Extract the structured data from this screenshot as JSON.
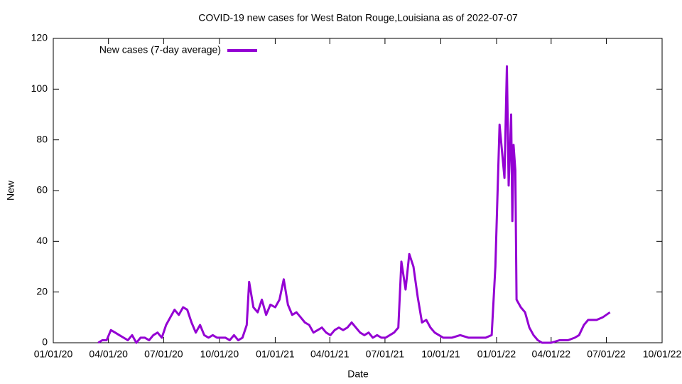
{
  "chart_data": {
    "type": "line",
    "title": "COVID-19 new cases for West Baton Rouge,Louisiana as of 2022-07-07",
    "x_label": "Date",
    "y_label": "New",
    "xlim": [
      "2020-01-01",
      "2022-10-01"
    ],
    "xticks": [
      {
        "value": "2020-01-01",
        "label": "01/01/20"
      },
      {
        "value": "2020-04-01",
        "label": "04/01/20"
      },
      {
        "value": "2020-07-01",
        "label": "07/01/20"
      },
      {
        "value": "2020-10-01",
        "label": "10/01/20"
      },
      {
        "value": "2021-01-01",
        "label": "01/01/21"
      },
      {
        "value": "2021-04-01",
        "label": "04/01/21"
      },
      {
        "value": "2021-07-01",
        "label": "07/01/21"
      },
      {
        "value": "2021-10-01",
        "label": "10/01/21"
      },
      {
        "value": "2022-01-01",
        "label": "01/01/22"
      },
      {
        "value": "2022-04-01",
        "label": "04/01/22"
      },
      {
        "value": "2022-07-01",
        "label": "07/01/22"
      },
      {
        "value": "2022-10-01",
        "label": "10/01/22"
      }
    ],
    "ylim": [
      0,
      120
    ],
    "yticks": [
      0,
      20,
      40,
      60,
      80,
      100,
      120
    ],
    "legend": "top-left",
    "x": [
      "2020-03-15",
      "2020-03-22",
      "2020-03-29",
      "2020-04-05",
      "2020-04-12",
      "2020-04-19",
      "2020-04-26",
      "2020-05-03",
      "2020-05-10",
      "2020-05-17",
      "2020-05-24",
      "2020-05-31",
      "2020-06-07",
      "2020-06-14",
      "2020-06-21",
      "2020-06-28",
      "2020-07-05",
      "2020-07-12",
      "2020-07-19",
      "2020-07-26",
      "2020-08-02",
      "2020-08-09",
      "2020-08-16",
      "2020-08-23",
      "2020-08-30",
      "2020-09-06",
      "2020-09-13",
      "2020-09-20",
      "2020-09-27",
      "2020-10-04",
      "2020-10-11",
      "2020-10-18",
      "2020-10-25",
      "2020-11-01",
      "2020-11-08",
      "2020-11-15",
      "2020-11-19",
      "2020-11-26",
      "2020-12-03",
      "2020-12-10",
      "2020-12-17",
      "2020-12-24",
      "2021-01-01",
      "2021-01-08",
      "2021-01-15",
      "2021-01-22",
      "2021-01-29",
      "2021-02-05",
      "2021-02-12",
      "2021-02-19",
      "2021-02-26",
      "2021-03-05",
      "2021-03-12",
      "2021-03-19",
      "2021-03-26",
      "2021-04-02",
      "2021-04-09",
      "2021-04-16",
      "2021-04-23",
      "2021-04-30",
      "2021-05-07",
      "2021-05-14",
      "2021-05-21",
      "2021-05-28",
      "2021-06-04",
      "2021-06-11",
      "2021-06-18",
      "2021-06-25",
      "2021-07-02",
      "2021-07-09",
      "2021-07-16",
      "2021-07-23",
      "2021-07-28",
      "2021-08-04",
      "2021-08-10",
      "2021-08-17",
      "2021-08-24",
      "2021-08-31",
      "2021-09-07",
      "2021-09-14",
      "2021-09-21",
      "2021-09-28",
      "2021-10-05",
      "2021-10-19",
      "2021-11-02",
      "2021-11-16",
      "2021-11-30",
      "2021-12-14",
      "2021-12-24",
      "2021-12-30",
      "2022-01-06",
      "2022-01-14",
      "2022-01-18",
      "2022-01-21",
      "2022-01-25",
      "2022-01-27",
      "2022-01-29",
      "2022-02-01",
      "2022-02-03",
      "2022-02-10",
      "2022-02-17",
      "2022-02-24",
      "2022-03-03",
      "2022-03-10",
      "2022-03-17",
      "2022-04-01",
      "2022-04-15",
      "2022-04-29",
      "2022-05-10",
      "2022-05-17",
      "2022-05-25",
      "2022-06-01",
      "2022-06-15",
      "2022-06-25",
      "2022-07-07"
    ],
    "series": [
      {
        "name": "New cases (7-day average)",
        "color": "#9400d3",
        "values": [
          0,
          1,
          1,
          5,
          4,
          3,
          2,
          1,
          3,
          0,
          2,
          2,
          1,
          3,
          4,
          2,
          7,
          10,
          13,
          11,
          14,
          13,
          8,
          4,
          7,
          3,
          2,
          3,
          2,
          2,
          2,
          1,
          3,
          1,
          2,
          7,
          24,
          14,
          12,
          17,
          11,
          15,
          14,
          17,
          25,
          15,
          11,
          12,
          10,
          8,
          7,
          4,
          5,
          6,
          4,
          3,
          5,
          6,
          5,
          6,
          8,
          6,
          4,
          3,
          4,
          2,
          3,
          2,
          2,
          3,
          4,
          6,
          32,
          21,
          35,
          30,
          18,
          8,
          9,
          6,
          4,
          3,
          2,
          2,
          3,
          2,
          2,
          2,
          3,
          30,
          86,
          65,
          109,
          62,
          90,
          48,
          78,
          68,
          17,
          14,
          12,
          6,
          3,
          1,
          0,
          0,
          1,
          1,
          2,
          3,
          7,
          9,
          9,
          10,
          12
        ]
      }
    ]
  }
}
